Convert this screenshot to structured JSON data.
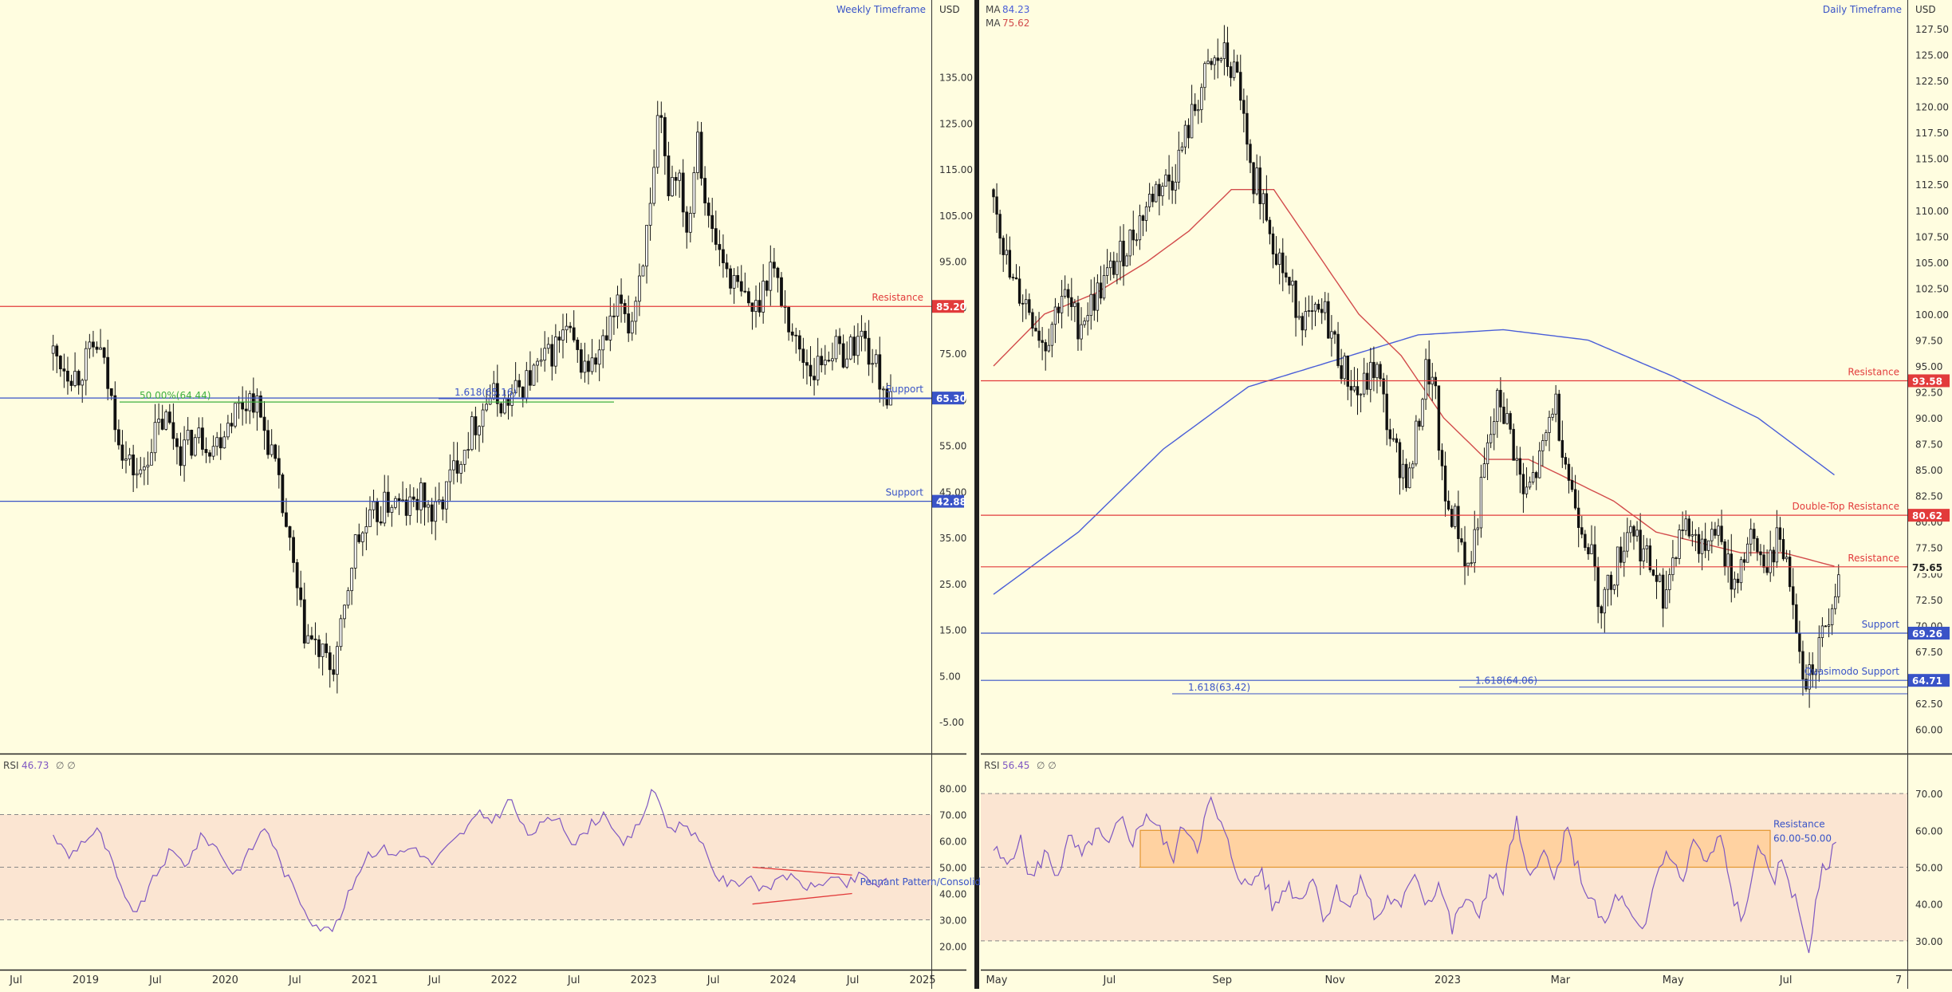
{
  "chart_data": [
    {
      "type": "candlestick",
      "title": "Weekly Timeframe",
      "currency": "USD",
      "y_ticks": [
        "135.00",
        "125.00",
        "115.00",
        "105.00",
        "95.00",
        "85.00",
        "75.00",
        "65.00",
        "55.00",
        "45.00",
        "35.00",
        "25.00",
        "15.00",
        "5.00",
        "-5.00"
      ],
      "x_ticks": [
        "Jul",
        "2019",
        "Jul",
        "2020",
        "Jul",
        "2021",
        "Jul",
        "2022",
        "Jul",
        "2023",
        "Jul",
        "2024",
        "Jul",
        "2025"
      ],
      "ylim": [
        -10,
        150
      ],
      "levels": [
        {
          "label": "Resistance",
          "value": 85.2,
          "value_text": "85.20",
          "role": "resistance"
        },
        {
          "label": "Support",
          "value": 65.3,
          "value_text": "65.30",
          "role": "support"
        },
        {
          "label": "Support",
          "value": 42.88,
          "value_text": "42.88",
          "role": "support"
        }
      ],
      "annotations": [
        {
          "text": "50.00%(64.44)",
          "value": 64.44
        },
        {
          "text": "1.618(65.16)",
          "value": 65.16
        }
      ],
      "price_path": [
        [
          0,
          75
        ],
        [
          0.05,
          72
        ],
        [
          0.09,
          70
        ],
        [
          0.13,
          74
        ],
        [
          0.17,
          77
        ],
        [
          0.21,
          67
        ],
        [
          0.27,
          52
        ],
        [
          0.33,
          48
        ],
        [
          0.37,
          56
        ],
        [
          0.42,
          61
        ],
        [
          0.48,
          54
        ],
        [
          0.55,
          57
        ],
        [
          0.61,
          55
        ],
        [
          0.67,
          62
        ],
        [
          0.75,
          66
        ],
        [
          0.82,
          54
        ],
        [
          0.88,
          36
        ],
        [
          0.94,
          15
        ],
        [
          1.0,
          10
        ],
        [
          1.05,
          6
        ],
        [
          1.09,
          16
        ],
        [
          1.13,
          33
        ],
        [
          1.2,
          39
        ],
        [
          1.27,
          43
        ],
        [
          1.33,
          41
        ],
        [
          1.39,
          44
        ],
        [
          1.43,
          39
        ],
        [
          1.47,
          44
        ],
        [
          1.52,
          52
        ],
        [
          1.58,
          59
        ],
        [
          1.64,
          66
        ],
        [
          1.7,
          64
        ],
        [
          1.78,
          69
        ],
        [
          1.86,
          74
        ],
        [
          1.93,
          80
        ],
        [
          1.98,
          73
        ],
        [
          2.03,
          72
        ],
        [
          2.08,
          78
        ],
        [
          2.14,
          87
        ],
        [
          2.17,
          80
        ],
        [
          2.21,
          94
        ],
        [
          2.25,
          106
        ],
        [
          2.28,
          128
        ],
        [
          2.31,
          111
        ],
        [
          2.35,
          116
        ],
        [
          2.39,
          100
        ],
        [
          2.42,
          126
        ],
        [
          2.46,
          104
        ],
        [
          2.52,
          95
        ],
        [
          2.58,
          88
        ],
        [
          2.64,
          84
        ],
        [
          2.7,
          95
        ],
        [
          2.75,
          85
        ],
        [
          2.8,
          76
        ],
        [
          2.86,
          71
        ],
        [
          2.92,
          76
        ],
        [
          2.98,
          75
        ],
        [
          3.04,
          79
        ],
        [
          3.1,
          71
        ],
        [
          3.15,
          64
        ]
      ],
      "rsi": {
        "label": "RSI",
        "value": "46.73",
        "extra": "∅ ∅",
        "y_ticks": [
          "80.00",
          "70.00",
          "60.00",
          "50.00",
          "40.00",
          "30.00",
          "20.00"
        ],
        "ylim": [
          15,
          85
        ],
        "bands": [
          70,
          50,
          30
        ],
        "annotation": "Pennant Pattern/Consolidation",
        "path": [
          [
            0,
            62
          ],
          [
            0.06,
            54
          ],
          [
            0.11,
            60
          ],
          [
            0.17,
            64
          ],
          [
            0.22,
            52
          ],
          [
            0.27,
            37
          ],
          [
            0.32,
            33
          ],
          [
            0.38,
            46
          ],
          [
            0.44,
            56
          ],
          [
            0.5,
            51
          ],
          [
            0.56,
            62
          ],
          [
            0.62,
            57
          ],
          [
            0.68,
            47
          ],
          [
            0.74,
            56
          ],
          [
            0.8,
            66
          ],
          [
            0.86,
            50
          ],
          [
            0.92,
            39
          ],
          [
            0.97,
            30
          ],
          [
            1.02,
            26
          ],
          [
            1.07,
            28
          ],
          [
            1.12,
            42
          ],
          [
            1.18,
            55
          ],
          [
            1.24,
            57
          ],
          [
            1.3,
            55
          ],
          [
            1.36,
            58
          ],
          [
            1.42,
            51
          ],
          [
            1.48,
            57
          ],
          [
            1.54,
            63
          ],
          [
            1.6,
            70
          ],
          [
            1.66,
            68
          ],
          [
            1.72,
            76
          ],
          [
            1.78,
            62
          ],
          [
            1.84,
            66
          ],
          [
            1.9,
            70
          ],
          [
            1.96,
            58
          ],
          [
            2.02,
            66
          ],
          [
            2.08,
            71
          ],
          [
            2.14,
            57
          ],
          [
            2.2,
            66
          ],
          [
            2.26,
            80
          ],
          [
            2.32,
            64
          ],
          [
            2.38,
            67
          ],
          [
            2.44,
            58
          ],
          [
            2.5,
            46
          ],
          [
            2.56,
            43
          ],
          [
            2.62,
            47
          ],
          [
            2.68,
            40
          ],
          [
            2.74,
            48
          ],
          [
            2.8,
            44
          ],
          [
            2.86,
            42
          ],
          [
            2.92,
            46
          ],
          [
            2.98,
            43
          ],
          [
            3.04,
            47
          ],
          [
            3.1,
            43
          ],
          [
            3.15,
            45
          ]
        ]
      }
    },
    {
      "type": "candlestick",
      "title": "Daily Timeframe",
      "currency": "USD",
      "y_ticks": [
        "127.50",
        "125.00",
        "122.50",
        "120.00",
        "117.50",
        "115.00",
        "112.50",
        "110.00",
        "107.50",
        "105.00",
        "102.50",
        "100.00",
        "97.50",
        "95.00",
        "92.50",
        "90.00",
        "87.50",
        "85.00",
        "82.50",
        "80.00",
        "77.50",
        "75.00",
        "72.50",
        "70.00",
        "67.50",
        "65.00",
        "62.50",
        "60.00"
      ],
      "x_ticks": [
        "May",
        "Jul",
        "Sep",
        "Nov",
        "2023",
        "Mar",
        "May",
        "Jul",
        "7"
      ],
      "ylim": [
        58.5,
        129.5
      ],
      "moving_averages": [
        {
          "label": "MA",
          "value": "84.23",
          "color": "#4a5ed8"
        },
        {
          "label": "MA",
          "value": "75.62",
          "color": "#d24b4b"
        }
      ],
      "levels": [
        {
          "label": "Resistance",
          "value": 93.58,
          "value_text": "93.58",
          "role": "resistance"
        },
        {
          "label": "Double-Top Resistance",
          "value": 80.62,
          "value_text": "80.62",
          "role": "resistance"
        },
        {
          "label": "Resistance",
          "value": 75.65,
          "value_text": "75.65",
          "role": "resistance-plain"
        },
        {
          "label": "Support",
          "value": 69.26,
          "value_text": "69.26",
          "role": "support"
        },
        {
          "label": "Quasimodo Support",
          "value": 64.71,
          "value_text": "64.71",
          "role": "support"
        }
      ],
      "annotations": [
        {
          "text": "1.618(63.42)",
          "value": 63.42
        },
        {
          "text": "1.618(64.06)",
          "value": 64.06
        }
      ],
      "price_path": [
        [
          0,
          112
        ],
        [
          0.2,
          103
        ],
        [
          0.4,
          101
        ],
        [
          0.6,
          97
        ],
        [
          0.8,
          102
        ],
        [
          1.0,
          99
        ],
        [
          1.3,
          103
        ],
        [
          1.6,
          107
        ],
        [
          1.9,
          112
        ],
        [
          2.1,
          113
        ],
        [
          2.3,
          118
        ],
        [
          2.5,
          123
        ],
        [
          2.7,
          125
        ],
        [
          2.9,
          122
        ],
        [
          3.0,
          114
        ],
        [
          3.15,
          112
        ],
        [
          3.3,
          107
        ],
        [
          3.5,
          102
        ],
        [
          3.7,
          99
        ],
        [
          3.9,
          100
        ],
        [
          4.1,
          95
        ],
        [
          4.3,
          92
        ],
        [
          4.5,
          95
        ],
        [
          4.7,
          87
        ],
        [
          4.9,
          84
        ],
        [
          5.1,
          95
        ],
        [
          5.2,
          92
        ],
        [
          5.3,
          82
        ],
        [
          5.45,
          80
        ],
        [
          5.6,
          75
        ],
        [
          5.8,
          86
        ],
        [
          5.95,
          92
        ],
        [
          6.1,
          88
        ],
        [
          6.25,
          82
        ],
        [
          6.45,
          86
        ],
        [
          6.6,
          92
        ],
        [
          6.8,
          83
        ],
        [
          7.0,
          78
        ],
        [
          7.15,
          72
        ],
        [
          7.3,
          75
        ],
        [
          7.5,
          80
        ],
        [
          7.7,
          76
        ],
        [
          7.9,
          73
        ],
        [
          8.1,
          80
        ],
        [
          8.3,
          78
        ],
        [
          8.5,
          80
        ],
        [
          8.7,
          74
        ],
        [
          8.9,
          78
        ],
        [
          9.1,
          76
        ],
        [
          9.25,
          79
        ],
        [
          9.4,
          74
        ],
        [
          9.55,
          65
        ],
        [
          9.7,
          67
        ],
        [
          9.85,
          72
        ],
        [
          9.95,
          75
        ]
      ],
      "ma_long_path": [
        [
          0,
          73
        ],
        [
          1.0,
          79
        ],
        [
          2.0,
          87
        ],
        [
          3.0,
          93
        ],
        [
          4.0,
          95.5
        ],
        [
          5.0,
          98
        ],
        [
          6.0,
          98.5
        ],
        [
          7.0,
          97.5
        ],
        [
          8.0,
          94
        ],
        [
          9.0,
          90
        ],
        [
          9.95,
          84.2
        ]
      ],
      "ma_short_path": [
        [
          0,
          95
        ],
        [
          0.6,
          100
        ],
        [
          1.2,
          102
        ],
        [
          1.8,
          105
        ],
        [
          2.3,
          108
        ],
        [
          2.8,
          112
        ],
        [
          3.3,
          112
        ],
        [
          3.8,
          106
        ],
        [
          4.3,
          100
        ],
        [
          4.8,
          96
        ],
        [
          5.3,
          90
        ],
        [
          5.8,
          86
        ],
        [
          6.3,
          86
        ],
        [
          6.8,
          84
        ],
        [
          7.3,
          82
        ],
        [
          7.8,
          79
        ],
        [
          8.3,
          78
        ],
        [
          8.8,
          77
        ],
        [
          9.3,
          77
        ],
        [
          9.95,
          75.6
        ]
      ],
      "rsi": {
        "label": "RSI",
        "value": "56.45",
        "extra": "∅ ∅",
        "y_ticks": [
          "70.00",
          "60.00",
          "50.00",
          "40.00",
          "30.00"
        ],
        "ylim": [
          25,
          75
        ],
        "bands": [
          70,
          50,
          30
        ],
        "zone": {
          "label": "Resistance",
          "range_text": "60.00-50.00",
          "from": 50,
          "to": 60
        },
        "path": [
          [
            0,
            55
          ],
          [
            0.15,
            50
          ],
          [
            0.3,
            58
          ],
          [
            0.45,
            46
          ],
          [
            0.6,
            54
          ],
          [
            0.75,
            48
          ],
          [
            0.9,
            58
          ],
          [
            1.05,
            52
          ],
          [
            1.2,
            60
          ],
          [
            1.35,
            55
          ],
          [
            1.5,
            63
          ],
          [
            1.65,
            57
          ],
          [
            1.8,
            65
          ],
          [
            1.95,
            60
          ],
          [
            2.1,
            52
          ],
          [
            2.25,
            62
          ],
          [
            2.4,
            56
          ],
          [
            2.55,
            68
          ],
          [
            2.7,
            60
          ],
          [
            2.85,
            50
          ],
          [
            3.0,
            44
          ],
          [
            3.15,
            50
          ],
          [
            3.3,
            38
          ],
          [
            3.45,
            46
          ],
          [
            3.6,
            41
          ],
          [
            3.75,
            48
          ],
          [
            3.9,
            36
          ],
          [
            4.05,
            44
          ],
          [
            4.2,
            39
          ],
          [
            4.35,
            47
          ],
          [
            4.5,
            35
          ],
          [
            4.65,
            42
          ],
          [
            4.8,
            38
          ],
          [
            4.95,
            50
          ],
          [
            5.1,
            40
          ],
          [
            5.25,
            46
          ],
          [
            5.4,
            33
          ],
          [
            5.55,
            42
          ],
          [
            5.7,
            36
          ],
          [
            5.85,
            48
          ],
          [
            6.0,
            44
          ],
          [
            6.15,
            63
          ],
          [
            6.3,
            45
          ],
          [
            6.45,
            56
          ],
          [
            6.6,
            46
          ],
          [
            6.75,
            60
          ],
          [
            6.9,
            48
          ],
          [
            7.05,
            40
          ],
          [
            7.2,
            34
          ],
          [
            7.35,
            43
          ],
          [
            7.5,
            36
          ],
          [
            7.65,
            31
          ],
          [
            7.8,
            48
          ],
          [
            7.95,
            55
          ],
          [
            8.1,
            45
          ],
          [
            8.25,
            58
          ],
          [
            8.4,
            50
          ],
          [
            8.55,
            59
          ],
          [
            8.7,
            42
          ],
          [
            8.85,
            35
          ],
          [
            9.0,
            58
          ],
          [
            9.15,
            45
          ],
          [
            9.3,
            52
          ],
          [
            9.45,
            40
          ],
          [
            9.6,
            28
          ],
          [
            9.75,
            48
          ],
          [
            9.95,
            57
          ]
        ]
      }
    }
  ]
}
